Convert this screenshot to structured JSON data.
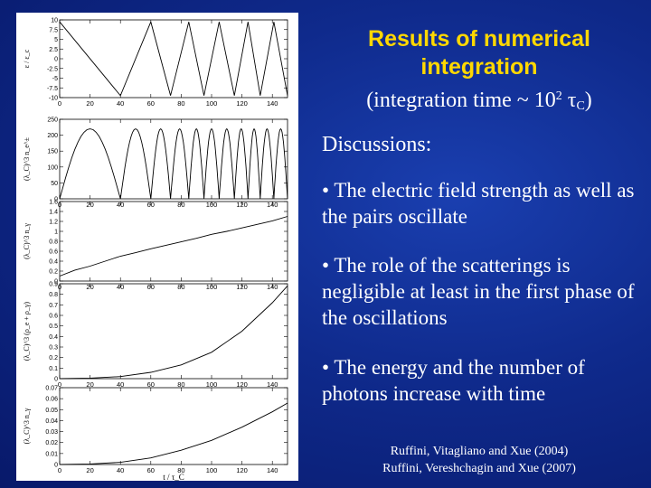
{
  "slide": {
    "title": "Results of numerical integration",
    "subtitle_prefix": "(integration time ~ 10",
    "subtitle_exp": "2",
    "subtitle_tau": " τ",
    "subtitle_sub": "C",
    "subtitle_suffix": ")",
    "discussions_heading": "Discussions:",
    "bullets": [
      "• The electric field strength as well as the pairs oscillate",
      "• The role of the scatterings is negligible at least in the first phase of the oscillations",
      "• The energy and the number of photons increase with time"
    ],
    "references": [
      "Ruffini, Vitagliano and Xue (2004)",
      "Ruffini, Vereshchagin and Xue (2007)"
    ]
  },
  "chart_data": [
    {
      "type": "line",
      "ylabel": "ε / ε_c",
      "x_ticks": [
        "0",
        "20",
        "40",
        "60",
        "80",
        "100",
        "120",
        "140"
      ],
      "y_ticks": [
        "-10",
        "-7.5",
        "-5",
        "-2.5",
        "0",
        "2.5",
        "5",
        "7.5",
        "10"
      ],
      "xlim": [
        0,
        150
      ],
      "ylim": [
        -10,
        10
      ],
      "series": [
        {
          "x": [
            0,
            40,
            60,
            73,
            85,
            95,
            105,
            115,
            124,
            132,
            141,
            150
          ],
          "y": [
            9.5,
            -9.5,
            9.5,
            -9.5,
            9.5,
            -9.5,
            9.5,
            -9.5,
            9.5,
            -9.5,
            9.5,
            -9.5
          ]
        }
      ]
    },
    {
      "type": "line",
      "ylabel": "(λ_C)^3 n_e^±",
      "x_ticks": [
        "0",
        "20",
        "40",
        "60",
        "80",
        "100",
        "120",
        "140"
      ],
      "y_ticks": [
        "0",
        "50",
        "100",
        "150",
        "200",
        "250"
      ],
      "xlim": [
        0,
        150
      ],
      "ylim": [
        0,
        250
      ],
      "series": [
        {
          "x": [
            0,
            40,
            60,
            73,
            85,
            95,
            105,
            115,
            124,
            132,
            141,
            150
          ],
          "y": [
            0,
            0,
            0,
            0,
            0,
            0,
            0,
            0,
            0,
            0,
            0,
            0
          ],
          "peak": 220
        }
      ]
    },
    {
      "type": "line",
      "ylabel": "(λ_C)^3 n_γ",
      "x_ticks": [
        "0",
        "20",
        "40",
        "60",
        "80",
        "100",
        "120",
        "140"
      ],
      "y_ticks": [
        "0",
        "0.2",
        "0.4",
        "0.6",
        "0.8",
        "1",
        "1.2",
        "1.4",
        "1.6"
      ],
      "xlim": [
        0,
        150
      ],
      "ylim": [
        0,
        1.6
      ],
      "series": [
        {
          "x": [
            0,
            10,
            20,
            30,
            40,
            50,
            60,
            70,
            80,
            90,
            100,
            110,
            120,
            130,
            140,
            150
          ],
          "y": [
            0.1,
            0.22,
            0.3,
            0.4,
            0.5,
            0.57,
            0.65,
            0.72,
            0.79,
            0.86,
            0.94,
            1.0,
            1.07,
            1.14,
            1.21,
            1.3
          ]
        }
      ]
    },
    {
      "type": "line",
      "ylabel": "(λ_C)^3 (ρ_e + ρ_γ)",
      "x_ticks": [
        "0",
        "20",
        "40",
        "60",
        "80",
        "100",
        "120",
        "140"
      ],
      "y_ticks": [
        "0",
        "0.1",
        "0.2",
        "0.3",
        "0.4",
        "0.5",
        "0.6",
        "0.7",
        "0.8",
        "0.9"
      ],
      "xlim": [
        0,
        150
      ],
      "ylim": [
        0,
        0.9
      ],
      "series": [
        {
          "x": [
            0,
            20,
            40,
            60,
            80,
            100,
            120,
            140,
            150
          ],
          "y": [
            0,
            0.005,
            0.02,
            0.06,
            0.13,
            0.25,
            0.45,
            0.72,
            0.88
          ]
        }
      ]
    },
    {
      "type": "line",
      "ylabel": "(λ_C)^3 n_γ",
      "xlabel": "t / τ_C",
      "x_ticks": [
        "0",
        "20",
        "40",
        "60",
        "80",
        "100",
        "120",
        "140"
      ],
      "y_ticks": [
        "0",
        "0.01",
        "0.02",
        "0.03",
        "0.04",
        "0.05",
        "0.06",
        "0.07"
      ],
      "xlim": [
        0,
        150
      ],
      "ylim": [
        0,
        0.07
      ],
      "series": [
        {
          "x": [
            0,
            20,
            40,
            60,
            80,
            100,
            120,
            140,
            150
          ],
          "y": [
            0,
            0.0005,
            0.002,
            0.006,
            0.013,
            0.022,
            0.034,
            0.048,
            0.056
          ]
        }
      ]
    }
  ]
}
